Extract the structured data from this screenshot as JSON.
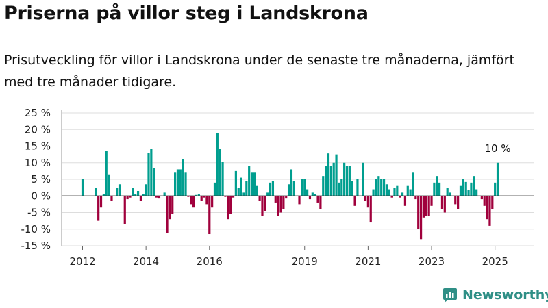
{
  "title": "Priserna på villor steg i Landskrona",
  "subtitle": "Prisutveckling för villor i Landskrona under de senaste tre månaderna, jämfört med tre månader tidigare.",
  "brand": "Newsworthy",
  "colors": {
    "positive": "#009e8f",
    "negative": "#a0003c",
    "grid": "#dddddd",
    "zero_line": "#333333",
    "brand": "#2f8f86"
  },
  "chart_data": {
    "type": "bar",
    "title": "",
    "xlabel": "",
    "ylabel": "",
    "ylim": [
      -15,
      25
    ],
    "yticks": [
      -15,
      -10,
      -5,
      0,
      5,
      10,
      15,
      20,
      25
    ],
    "ytick_labels": [
      "-15 %",
      "-10 %",
      "-5 %",
      "0 %",
      "5 %",
      "10 %",
      "15 %",
      "20 %",
      "25 %"
    ],
    "xticks": [
      {
        "label": "2012",
        "year": 2012
      },
      {
        "label": "2014",
        "year": 2014
      },
      {
        "label": "2016",
        "year": 2016
      },
      {
        "label": "2019",
        "year": 2019
      },
      {
        "label": "2021",
        "year": 2021
      },
      {
        "label": "2023",
        "year": 2023
      },
      {
        "label": "2025",
        "year": 2025
      }
    ],
    "annotation": {
      "label": "10 %",
      "value": 10
    },
    "grid": true,
    "series": [
      {
        "start": "2012-01",
        "values": [
          5,
          0,
          0,
          0,
          0,
          2.5,
          -7.5,
          -3.5,
          0.5,
          13.5,
          6.5,
          -1.5,
          0,
          2.5,
          3.5,
          0,
          -8.5,
          -1,
          -0.5,
          2.5,
          0.5,
          1.5,
          -1.5,
          0.5,
          3.5,
          13,
          14.2,
          8.5,
          -0.5,
          -0.8,
          0,
          1,
          -11.2,
          -7,
          -5.5,
          7,
          8,
          8,
          11,
          7,
          -0.3,
          -2.5,
          -3.5,
          0.3,
          0.5,
          -1.5,
          -0.5,
          -2.5,
          -11.5,
          -3.5,
          4,
          19,
          14.2,
          10.2,
          -0.3,
          -7,
          -5.5,
          -0.5,
          7.5,
          2.5,
          5.5,
          1,
          4.5,
          9,
          7,
          7,
          3,
          -1.5,
          -6,
          -4.5,
          1,
          4,
          4.5,
          -2,
          -6,
          -5,
          -4,
          -0.8,
          3.5,
          8,
          4.5,
          0,
          -2.5,
          5,
          5,
          2,
          -1,
          1,
          0.5,
          -2,
          -4,
          6,
          9,
          12.8,
          9,
          10,
          12.5,
          4,
          5,
          10,
          9,
          9,
          4.5,
          -3,
          5,
          0,
          10,
          -1.5,
          -3.5,
          -8,
          2,
          5,
          6,
          5,
          5,
          3.5,
          2,
          -0.5,
          2.5,
          3,
          -0.5,
          1,
          -3,
          3,
          2,
          7,
          -1,
          -10,
          -13,
          -6.5,
          -6,
          -6,
          -3,
          4,
          6,
          4,
          -4,
          -5,
          2.5,
          1,
          0,
          -2.5,
          -4,
          3,
          5,
          4.2,
          1.8,
          4,
          6,
          2,
          0,
          -1,
          -3,
          -7,
          -9,
          -4,
          4,
          10
        ]
      }
    ]
  }
}
